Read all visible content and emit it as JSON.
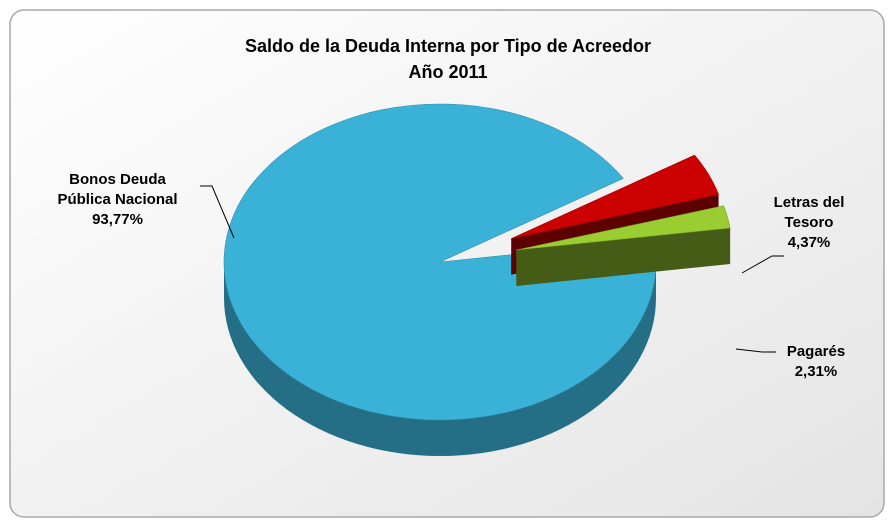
{
  "chart_data": {
    "type": "pie",
    "title": "Saldo de la Deuda Interna por Tipo de Acreedor",
    "subtitle": "Año 2011",
    "categories": [
      "Bonos Deuda Pública Nacional",
      "Letras del Tesoro",
      "Pagarés"
    ],
    "values": [
      93.77,
      4.37,
      2.31
    ],
    "value_labels": [
      "93,77%",
      "4,37%",
      "2,31%"
    ],
    "colors": [
      "#3ab2d8",
      "#cc0000",
      "#9acd32"
    ]
  }
}
